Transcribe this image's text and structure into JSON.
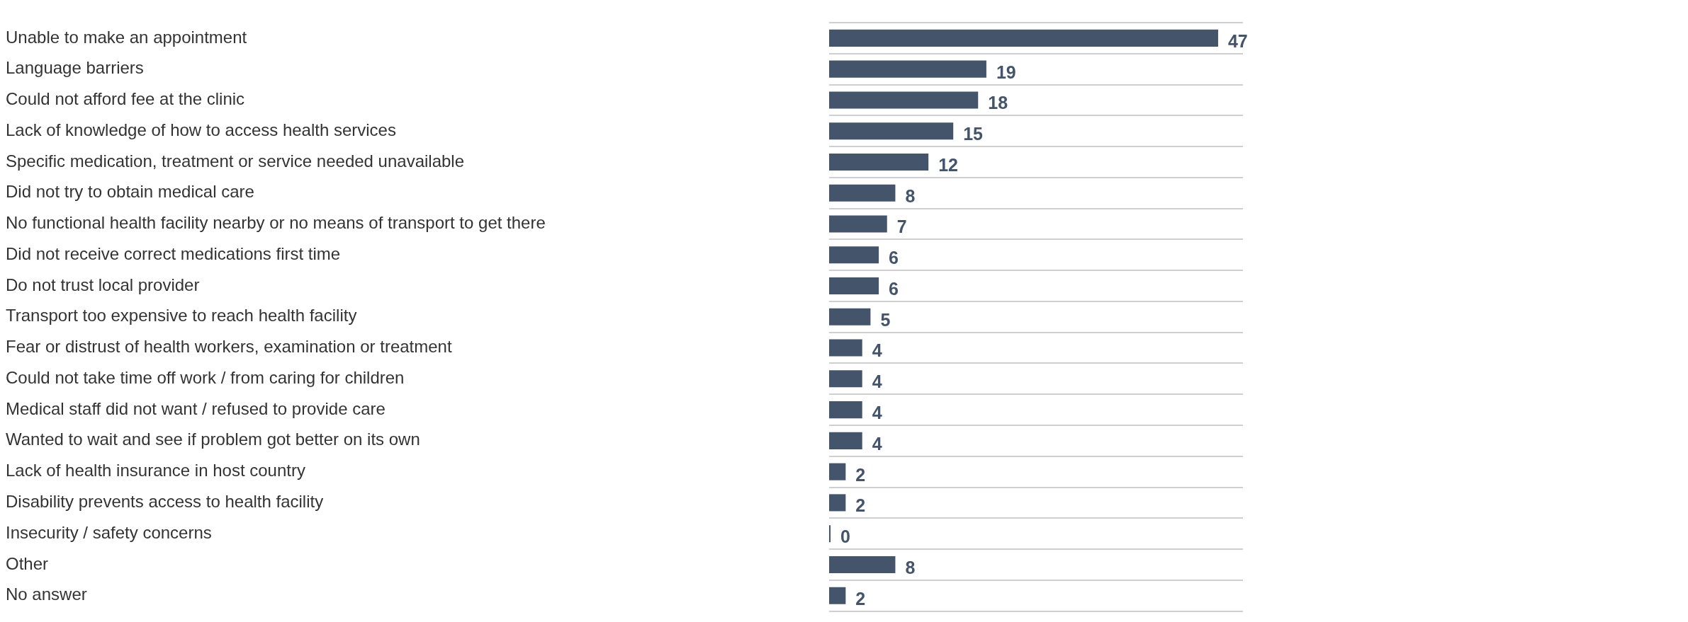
{
  "chart_data": {
    "type": "bar",
    "orientation": "horizontal",
    "categories": [
      "Unable to make an appointment",
      "Language barriers",
      "Could not afford fee at the clinic",
      "Lack of knowledge of how to access health services",
      "Specific medication, treatment or service needed unavailable",
      "Did not try to obtain medical care",
      "No functional health facility nearby or no means of transport to get there",
      "Did not receive correct medications first time",
      "Do not trust local provider",
      "Transport too expensive to reach health facility",
      "Fear or distrust of health workers, examination or treatment",
      "Could not take time off work / from caring for children",
      "Medical staff did not want / refused to provide care",
      "Wanted to wait and see if problem got better on its own",
      "Lack of health insurance in host country",
      "Disability prevents access to health facility",
      "Insecurity / safety concerns",
      "Other",
      "No answer"
    ],
    "values": [
      47,
      19,
      18,
      15,
      12,
      8,
      7,
      6,
      6,
      5,
      4,
      4,
      4,
      4,
      2,
      2,
      0,
      8,
      2
    ],
    "color": "#44546a",
    "data_labels": true,
    "grid": "y"
  }
}
